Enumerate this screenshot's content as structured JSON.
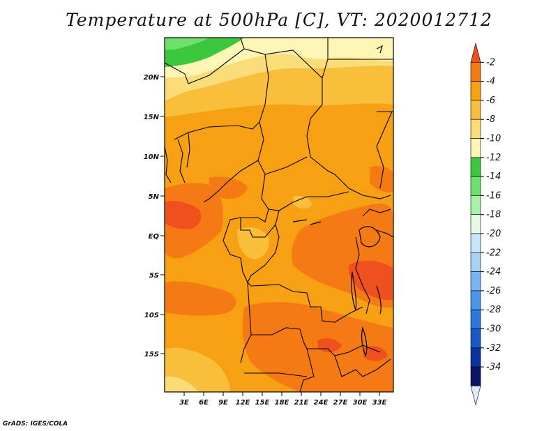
{
  "title": "Temperature at 500hPa [C], VT: 2020012712",
  "credit": "GrADS: IGES/COLA",
  "lat_ticks": [
    "20N",
    "15N",
    "10N",
    "5N",
    "EQ",
    "5S",
    "10S",
    "15S"
  ],
  "lon_ticks": [
    "3E",
    "6E",
    "9E",
    "12E",
    "15E",
    "18E",
    "21E",
    "24E",
    "27E",
    "30E",
    "33E"
  ],
  "colorbar": {
    "labels": [
      "-2",
      "-4",
      "-6",
      "-8",
      "-10",
      "-12",
      "-14",
      "-16",
      "-18",
      "-20",
      "-22",
      "-24",
      "-26",
      "-28",
      "-30",
      "-32",
      "-34"
    ],
    "colors": [
      "#f0501e",
      "#f57a14",
      "#f7a012",
      "#f8be3c",
      "#fadc78",
      "#fcf5b4",
      "#3cc83c",
      "#6ee06e",
      "#a8f0a8",
      "#e6fae6",
      "#c8e6fa",
      "#a8d2f5",
      "#78b4f0",
      "#4a96e6",
      "#2c78dc",
      "#1a5ac8",
      "#0a32a0",
      "#0a1464",
      "#e6e6fa"
    ]
  }
}
